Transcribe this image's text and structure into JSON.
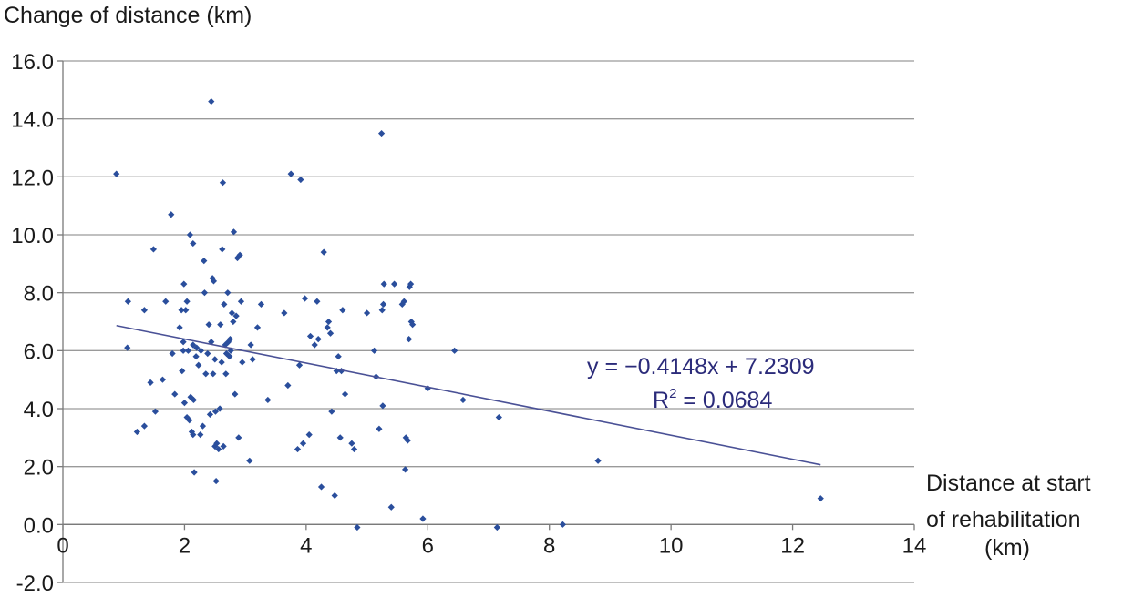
{
  "chart_data": {
    "type": "scatter",
    "title": "",
    "ylabel": "Change of distance (km)",
    "xlabel_lines": [
      "Distance at start",
      "of rehabilitation",
      "(km)"
    ],
    "xlim": [
      0,
      14
    ],
    "ylim": [
      -2,
      16
    ],
    "x_ticks": [
      0,
      2,
      4,
      6,
      8,
      10,
      12,
      14
    ],
    "x_tick_labels": [
      "0",
      "2",
      "4",
      "6",
      "8",
      "10",
      "12",
      "14"
    ],
    "y_ticks": [
      -2,
      0,
      2,
      4,
      6,
      8,
      10,
      12,
      14,
      16
    ],
    "y_tick_labels": [
      "-2.0",
      "0.0",
      "2.0",
      "4.0",
      "6.0",
      "8.0",
      "10.0",
      "12.0",
      "14.0",
      "16.0"
    ],
    "grid": "horizontal",
    "marker_color": "#2a4e9c",
    "trendline_color": "#4a5196",
    "trendline": {
      "slope": -0.4148,
      "intercept": 7.2309,
      "x_range": [
        0.88,
        12.46
      ],
      "equation": "y = −0.4148x + 7.2309",
      "r2_prefix": "R",
      "r2_sup": "2",
      "r2_suffix": " = 0.0684"
    },
    "points": [
      [
        0.88,
        12.1
      ],
      [
        1.06,
        6.1
      ],
      [
        1.07,
        7.7
      ],
      [
        1.22,
        3.2
      ],
      [
        1.34,
        3.4
      ],
      [
        1.34,
        7.4
      ],
      [
        1.44,
        4.9
      ],
      [
        1.49,
        9.5
      ],
      [
        1.52,
        3.9
      ],
      [
        1.64,
        5.0
      ],
      [
        1.69,
        7.7
      ],
      [
        1.78,
        10.7
      ],
      [
        1.8,
        5.9
      ],
      [
        1.84,
        4.5
      ],
      [
        1.92,
        6.8
      ],
      [
        1.95,
        7.4
      ],
      [
        1.96,
        5.3
      ],
      [
        1.98,
        6.0
      ],
      [
        1.98,
        6.3
      ],
      [
        1.99,
        8.3
      ],
      [
        2.0,
        4.2
      ],
      [
        2.02,
        7.4
      ],
      [
        2.04,
        7.7
      ],
      [
        2.04,
        3.7
      ],
      [
        2.06,
        6.0
      ],
      [
        2.08,
        3.6
      ],
      [
        2.09,
        10.0
      ],
      [
        2.1,
        4.4
      ],
      [
        2.12,
        3.2
      ],
      [
        2.14,
        3.1
      ],
      [
        2.14,
        9.7
      ],
      [
        2.14,
        6.2
      ],
      [
        2.15,
        4.3
      ],
      [
        2.16,
        1.8
      ],
      [
        2.19,
        5.8
      ],
      [
        2.2,
        6.1
      ],
      [
        2.23,
        5.5
      ],
      [
        2.26,
        3.1
      ],
      [
        2.27,
        6.0
      ],
      [
        2.3,
        3.4
      ],
      [
        2.32,
        9.1
      ],
      [
        2.33,
        8.0
      ],
      [
        2.35,
        5.2
      ],
      [
        2.38,
        5.9
      ],
      [
        2.4,
        6.9
      ],
      [
        2.42,
        3.8
      ],
      [
        2.44,
        14.6
      ],
      [
        2.44,
        6.3
      ],
      [
        2.46,
        8.5
      ],
      [
        2.47,
        5.2
      ],
      [
        2.48,
        8.4
      ],
      [
        2.5,
        2.7
      ],
      [
        2.5,
        5.7
      ],
      [
        2.51,
        3.9
      ],
      [
        2.52,
        1.5
      ],
      [
        2.53,
        2.8
      ],
      [
        2.56,
        2.6
      ],
      [
        2.58,
        4.0
      ],
      [
        2.59,
        6.9
      ],
      [
        2.61,
        5.6
      ],
      [
        2.62,
        9.5
      ],
      [
        2.63,
        11.8
      ],
      [
        2.64,
        2.7
      ],
      [
        2.65,
        7.6
      ],
      [
        2.67,
        6.2
      ],
      [
        2.68,
        5.2
      ],
      [
        2.69,
        5.9
      ],
      [
        2.71,
        8.0
      ],
      [
        2.72,
        6.3
      ],
      [
        2.74,
        5.8
      ],
      [
        2.75,
        6.4
      ],
      [
        2.76,
        6.0
      ],
      [
        2.78,
        7.3
      ],
      [
        2.8,
        7.0
      ],
      [
        2.81,
        10.1
      ],
      [
        2.83,
        4.5
      ],
      [
        2.85,
        7.2
      ],
      [
        2.87,
        9.2
      ],
      [
        2.89,
        3.0
      ],
      [
        2.91,
        9.3
      ],
      [
        2.93,
        7.7
      ],
      [
        2.95,
        5.6
      ],
      [
        3.07,
        2.2
      ],
      [
        3.09,
        6.2
      ],
      [
        3.12,
        5.7
      ],
      [
        3.2,
        6.8
      ],
      [
        3.26,
        7.6
      ],
      [
        3.37,
        4.3
      ],
      [
        3.64,
        7.3
      ],
      [
        3.7,
        4.8
      ],
      [
        3.75,
        12.1
      ],
      [
        3.86,
        2.6
      ],
      [
        3.89,
        5.5
      ],
      [
        3.91,
        11.9
      ],
      [
        3.95,
        2.8
      ],
      [
        3.98,
        7.8
      ],
      [
        4.05,
        3.1
      ],
      [
        4.07,
        6.5
      ],
      [
        4.14,
        6.2
      ],
      [
        4.18,
        7.7
      ],
      [
        4.2,
        6.4
      ],
      [
        4.25,
        1.3
      ],
      [
        4.29,
        9.4
      ],
      [
        4.35,
        6.8
      ],
      [
        4.37,
        7.0
      ],
      [
        4.4,
        6.6
      ],
      [
        4.42,
        3.9
      ],
      [
        4.47,
        1.0
      ],
      [
        4.5,
        5.3
      ],
      [
        4.53,
        5.8
      ],
      [
        4.56,
        3.0
      ],
      [
        4.58,
        5.3
      ],
      [
        4.6,
        7.4
      ],
      [
        4.64,
        4.5
      ],
      [
        4.75,
        2.8
      ],
      [
        4.79,
        2.6
      ],
      [
        4.84,
        -0.1
      ],
      [
        5.0,
        7.3
      ],
      [
        5.12,
        6.0
      ],
      [
        5.15,
        5.1
      ],
      [
        5.2,
        3.3
      ],
      [
        5.24,
        13.5
      ],
      [
        5.25,
        7.4
      ],
      [
        5.26,
        4.1
      ],
      [
        5.27,
        7.6
      ],
      [
        5.28,
        8.3
      ],
      [
        5.4,
        0.6
      ],
      [
        5.45,
        8.3
      ],
      [
        5.58,
        7.6
      ],
      [
        5.61,
        7.7
      ],
      [
        5.63,
        1.9
      ],
      [
        5.64,
        3.0
      ],
      [
        5.67,
        2.9
      ],
      [
        5.69,
        6.4
      ],
      [
        5.7,
        8.2
      ],
      [
        5.72,
        8.3
      ],
      [
        5.73,
        7.0
      ],
      [
        5.75,
        6.9
      ],
      [
        5.92,
        0.2
      ],
      [
        6.0,
        4.7
      ],
      [
        6.44,
        6.0
      ],
      [
        6.58,
        4.3
      ],
      [
        7.14,
        -0.1
      ],
      [
        7.17,
        3.7
      ],
      [
        8.22,
        0.0
      ],
      [
        8.8,
        2.2
      ],
      [
        12.46,
        0.9
      ]
    ]
  }
}
